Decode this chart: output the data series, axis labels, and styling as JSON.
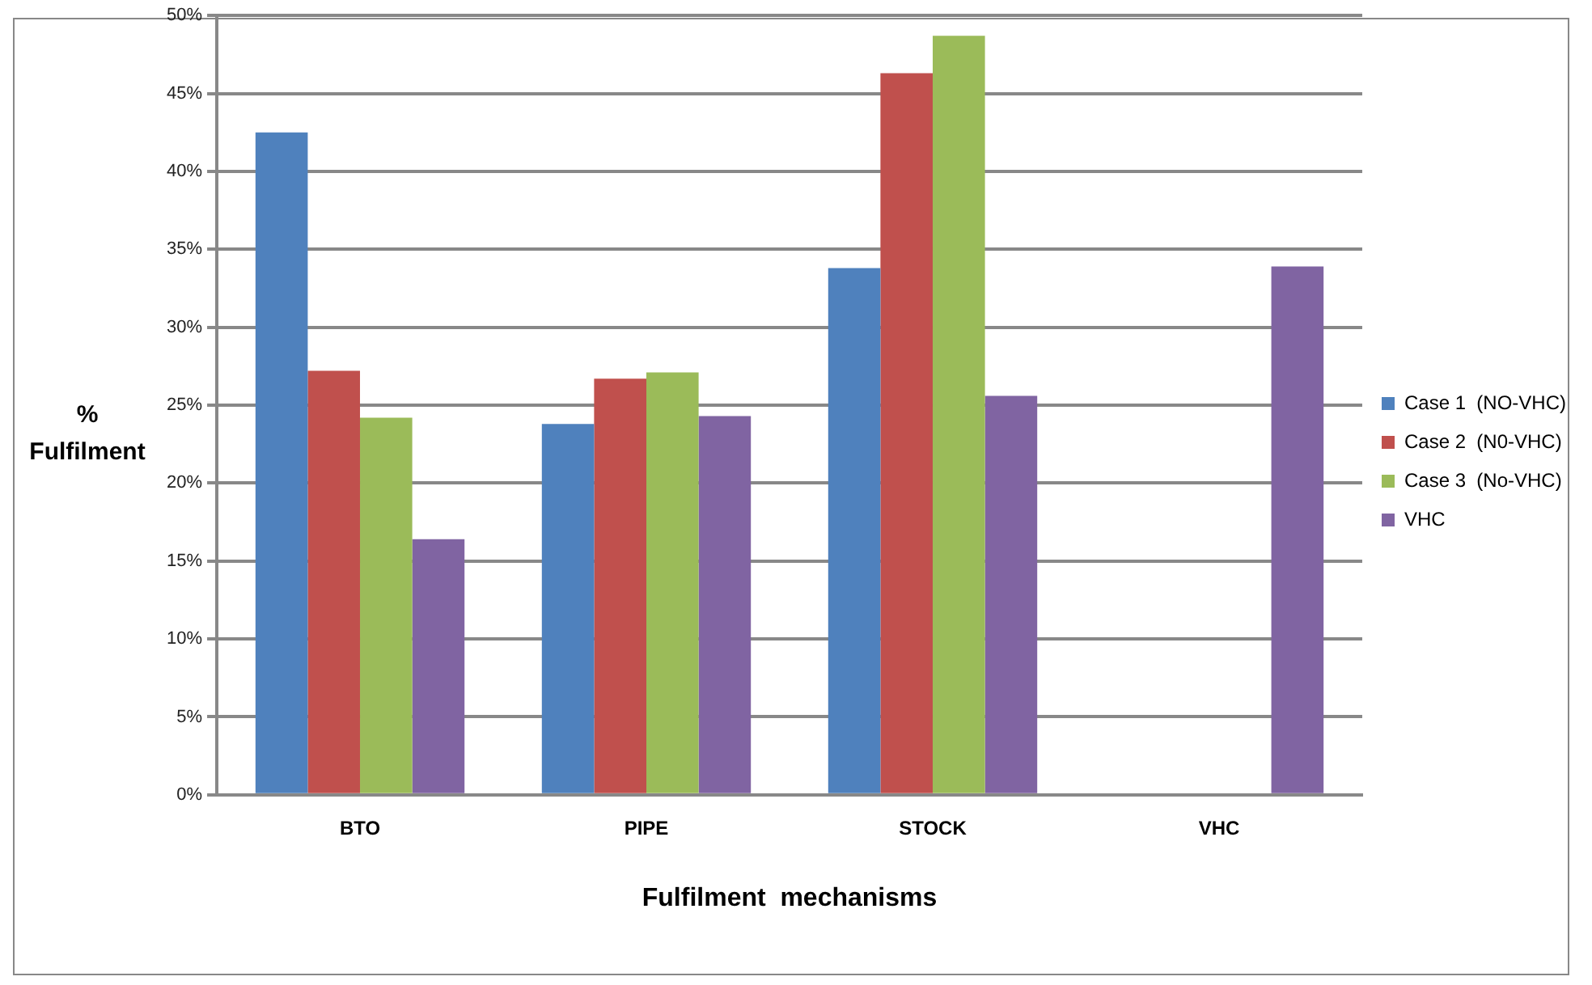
{
  "chart_data": {
    "type": "bar",
    "xlabel": "Fulfilment  mechanisms",
    "ylabel": "% Fulfilment",
    "categories": [
      "BTO",
      "PIPE",
      "STOCK",
      "VHC"
    ],
    "series": [
      {
        "name": "Case 1  (NO-VHC)",
        "color": "#4f81bd",
        "values": [
          42.5,
          23.8,
          33.8,
          null
        ]
      },
      {
        "name": "Case 2  (N0-VHC)",
        "color": "#c0504d",
        "values": [
          27.2,
          26.7,
          46.3,
          null
        ]
      },
      {
        "name": "Case 3  (No-VHC)",
        "color": "#9bbb59",
        "values": [
          24.2,
          27.1,
          48.7,
          null
        ]
      },
      {
        "name": "VHC",
        "color": "#8064a2",
        "values": [
          16.4,
          24.3,
          25.6,
          33.9
        ]
      }
    ],
    "ylim": [
      0,
      50
    ],
    "yticks": [
      {
        "value": 0,
        "label": "0%"
      },
      {
        "value": 5,
        "label": "5%"
      },
      {
        "value": 10,
        "label": "10%"
      },
      {
        "value": 15,
        "label": "15%"
      },
      {
        "value": 20,
        "label": "20%"
      },
      {
        "value": 25,
        "label": "25%"
      },
      {
        "value": 30,
        "label": "30%"
      },
      {
        "value": 35,
        "label": "35%"
      },
      {
        "value": 40,
        "label": "40%"
      },
      {
        "value": 45,
        "label": "45%"
      },
      {
        "value": 50,
        "label": "50%"
      }
    ],
    "grid": "y",
    "legend": "right"
  }
}
